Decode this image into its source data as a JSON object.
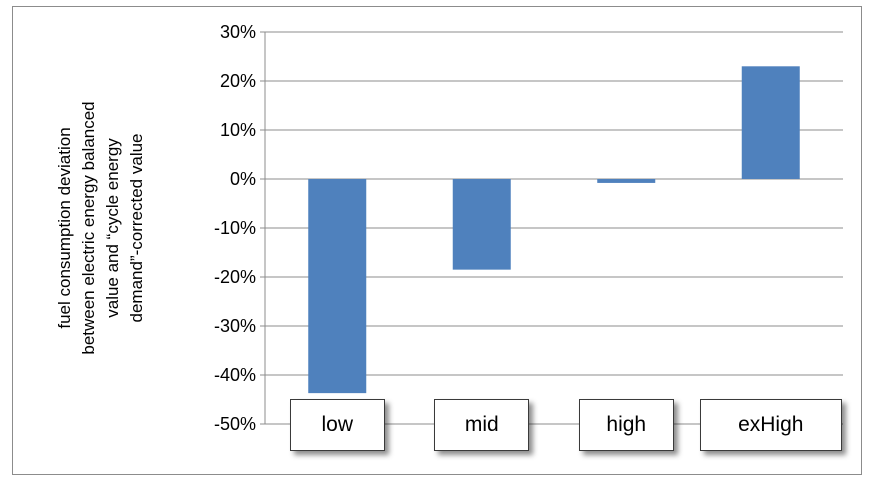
{
  "chart_data": {
    "type": "bar",
    "categories": [
      "low",
      "mid",
      "high",
      "exHigh"
    ],
    "values": [
      -43.7,
      -18.5,
      -0.8,
      23.0
    ],
    "ylabel_lines": [
      "fuel consumption deviation",
      "between electric energy balanced",
      "value and “cycle energy",
      "demand”-corrected value"
    ],
    "ylim": [
      -50,
      30
    ],
    "yticks": [
      30,
      20,
      10,
      0,
      -10,
      -20,
      -30,
      -40,
      -50
    ],
    "ytick_labels": [
      "30%",
      "20%",
      "10%",
      "0%",
      "-10%",
      "-20%",
      "-30%",
      "-40%",
      "-50%"
    ],
    "grid": true,
    "bar_color": "#4f81bd",
    "grid_color": "#8c8c8c",
    "legend": "none"
  }
}
